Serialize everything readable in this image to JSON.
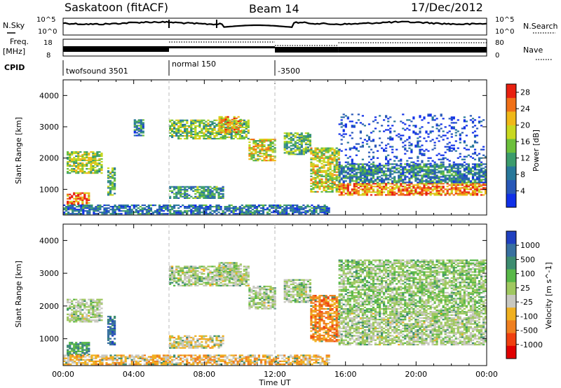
{
  "header": {
    "station": "Saskatoon (fitACF)",
    "beam": "Beam 14",
    "date": "17/Dec/2012"
  },
  "top_panels": {
    "nsky_label": "N.Sky",
    "nsky_ticks": [
      "10^5",
      "10^0"
    ],
    "nsearch_label": "N.Search",
    "nsearch_ticks": [
      "10^5",
      "10^0"
    ],
    "freq_label": "Freq.",
    "freq_unit": "[MHz]",
    "freq_ticks": [
      "18",
      "8"
    ],
    "nave_label": "Nave",
    "nave_ticks": [
      "80",
      "0"
    ],
    "cpid_label": "CPID",
    "cpid_segments": [
      {
        "label": "twofsound 3501",
        "start_h": 0,
        "end_h": 6
      },
      {
        "label": "normal 150",
        "start_h": 6,
        "end_h": 12
      },
      {
        "label": "-3500",
        "start_h": 12,
        "end_h": 24
      }
    ]
  },
  "chart_data": [
    {
      "type": "heatmap",
      "parameter": "Power",
      "ylabel": "Slant Range [km]",
      "ylim": [
        180,
        4500
      ],
      "yticks": [
        "1000",
        "2000",
        "3000",
        "4000"
      ],
      "xlim": [
        0,
        24
      ],
      "colorbar_label": "Power [dB]",
      "colorbar_ticks": [
        "4",
        "8",
        "12",
        "16",
        "20",
        "24",
        "28"
      ],
      "colorbar_range": [
        0,
        30
      ],
      "colors": [
        "#1030e8",
        "#2858b8",
        "#28789a",
        "#3c9c6c",
        "#6cc03c",
        "#c8d820",
        "#f0b818",
        "#f07018",
        "#e82010"
      ],
      "echo_regions": [
        {
          "t0": 0.2,
          "t1": 1.5,
          "r0": 500,
          "r1": 900,
          "level": 0.85
        },
        {
          "t0": 0.2,
          "t1": 2.2,
          "r0": 1500,
          "r1": 2200,
          "level": 0.55
        },
        {
          "t0": 2.5,
          "t1": 2.9,
          "r0": 800,
          "r1": 1700,
          "level": 0.45
        },
        {
          "t0": 4.0,
          "t1": 4.5,
          "r0": 2700,
          "r1": 3200,
          "level": 0.3
        },
        {
          "t0": 6.0,
          "t1": 10.5,
          "r0": 2600,
          "r1": 3200,
          "level": 0.5
        },
        {
          "t0": 8.8,
          "t1": 10.0,
          "r0": 2800,
          "r1": 3300,
          "level": 0.7
        },
        {
          "t0": 10.5,
          "t1": 12.0,
          "r0": 1900,
          "r1": 2600,
          "level": 0.6
        },
        {
          "t0": 6.0,
          "t1": 9.0,
          "r0": 700,
          "r1": 1100,
          "level": 0.35
        },
        {
          "t0": 12.5,
          "t1": 14.0,
          "r0": 2100,
          "r1": 2800,
          "level": 0.45
        },
        {
          "t0": 14.0,
          "t1": 15.6,
          "r0": 900,
          "r1": 2300,
          "level": 0.6
        },
        {
          "t0": 15.6,
          "t1": 24.0,
          "r0": 800,
          "r1": 1200,
          "level": 0.8
        },
        {
          "t0": 15.6,
          "t1": 24.0,
          "r0": 1200,
          "r1": 1800,
          "level": 0.3
        },
        {
          "t0": 15.6,
          "t1": 24.0,
          "r0": 1800,
          "r1": 3400,
          "level": 0.08
        },
        {
          "t0": 0.0,
          "t1": 15.0,
          "r0": 200,
          "r1": 500,
          "level": 0.25
        }
      ]
    },
    {
      "type": "heatmap",
      "parameter": "Velocity",
      "ylabel": "Slant Range [km]",
      "ylim": [
        180,
        4500
      ],
      "yticks": [
        "1000",
        "2000",
        "3000",
        "4000"
      ],
      "xlim": [
        0,
        24
      ],
      "xticks": [
        "00:00",
        "04:00",
        "08:00",
        "12:00",
        "16:00",
        "20:00",
        "00:00"
      ],
      "xlabel": "Time UT",
      "colorbar_label": "Velocity [m s^-1]",
      "colorbar_ticks": [
        "1000",
        "500",
        "100",
        "25",
        "-25",
        "-100",
        "-500",
        "-1000"
      ],
      "colors": [
        "#2040c0",
        "#3870a0",
        "#3c8c70",
        "#58b848",
        "#a0c860",
        "#c8c8c0",
        "#f0b020",
        "#f08020",
        "#f04010",
        "#e00000"
      ],
      "echo_regions": [
        {
          "t0": 0.2,
          "t1": 1.5,
          "r0": 500,
          "r1": 900,
          "v": 0.3
        },
        {
          "t0": 0.2,
          "t1": 2.2,
          "r0": 1500,
          "r1": 2200,
          "v": 0.5
        },
        {
          "t0": 2.5,
          "t1": 2.9,
          "r0": 800,
          "r1": 1700,
          "v": 0.15
        },
        {
          "t0": 6.0,
          "t1": 10.5,
          "r0": 2600,
          "r1": 3200,
          "v": 0.5
        },
        {
          "t0": 8.8,
          "t1": 10.0,
          "r0": 2800,
          "r1": 3300,
          "v": 0.5
        },
        {
          "t0": 10.5,
          "t1": 12.0,
          "r0": 1900,
          "r1": 2600,
          "v": 0.5
        },
        {
          "t0": 6.0,
          "t1": 9.0,
          "r0": 700,
          "r1": 1100,
          "v": 0.6
        },
        {
          "t0": 12.5,
          "t1": 14.0,
          "r0": 2100,
          "r1": 2800,
          "v": 0.5
        },
        {
          "t0": 14.0,
          "t1": 15.6,
          "r0": 900,
          "r1": 2300,
          "v": 0.75
        },
        {
          "t0": 15.6,
          "t1": 24.0,
          "r0": 800,
          "r1": 1800,
          "v": 0.5
        },
        {
          "t0": 15.6,
          "t1": 24.0,
          "r0": 1800,
          "r1": 3400,
          "v": 0.45
        },
        {
          "t0": 0.0,
          "t1": 15.0,
          "r0": 200,
          "r1": 500,
          "v": 0.65
        }
      ]
    }
  ]
}
